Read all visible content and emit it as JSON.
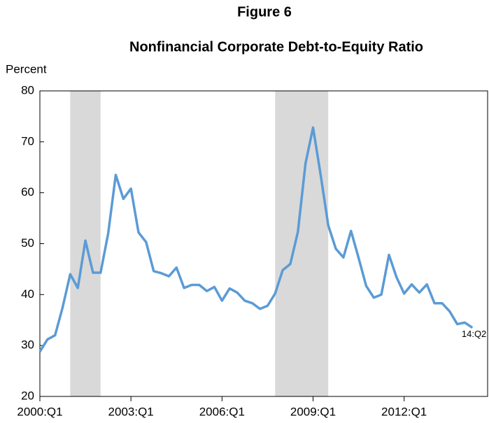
{
  "chart_data": {
    "type": "line",
    "figure_label": "Figure 6",
    "title": "Nonfinancial Corporate Debt-to-Equity Ratio",
    "y_label": "Percent",
    "annotation": "14:Q2",
    "x": [
      0,
      1,
      2,
      3,
      4,
      5,
      6,
      7,
      8,
      9,
      10,
      11,
      12,
      13,
      14,
      15,
      16,
      17,
      18,
      19,
      20,
      21,
      22,
      23,
      24,
      25,
      26,
      27,
      28,
      29,
      30,
      31,
      32,
      33,
      34,
      35,
      36,
      37,
      38,
      39,
      40,
      41,
      42,
      43,
      44,
      45,
      46,
      47,
      48,
      49,
      50,
      51,
      52,
      53,
      54,
      55,
      56,
      57
    ],
    "series": [
      {
        "color": "#5b9bd5",
        "values": [
          28.8,
          31.2,
          32,
          37.5,
          44,
          41.3,
          50.6,
          44.3,
          44.3,
          52,
          63.5,
          58.8,
          60.8,
          52.2,
          50.3,
          44.6,
          44.2,
          43.6,
          45.3,
          41.3,
          41.9,
          41.9,
          40.7,
          41.5,
          38.8,
          41.2,
          40.4,
          38.8,
          38.3,
          37.2,
          37.8,
          40.2,
          44.8,
          46,
          52.3,
          65.7,
          72.8,
          63.5,
          53.6,
          49,
          47.3,
          52.5,
          47.2,
          41.7,
          39.4,
          40,
          47.8,
          43.4,
          40.2,
          42,
          40.4,
          42,
          38.3,
          38.3,
          36.7,
          34.2,
          34.5,
          33.5
        ]
      }
    ],
    "recessions": [
      {
        "start": 4,
        "end": 8
      },
      {
        "start": 31,
        "end": 38
      }
    ],
    "recession_color": "#d9d9d9",
    "xlim": [
      0,
      59
    ],
    "xticks": [
      {
        "value": 0,
        "label": "2000:Q1"
      },
      {
        "value": 12,
        "label": "2003:Q1"
      },
      {
        "value": 24,
        "label": "2006:Q1"
      },
      {
        "value": 36,
        "label": "2009:Q1"
      },
      {
        "value": 48,
        "label": "2012:Q1"
      }
    ],
    "ylim": [
      20,
      80
    ],
    "yticks": [
      20,
      30,
      40,
      50,
      60,
      70,
      80
    ]
  }
}
